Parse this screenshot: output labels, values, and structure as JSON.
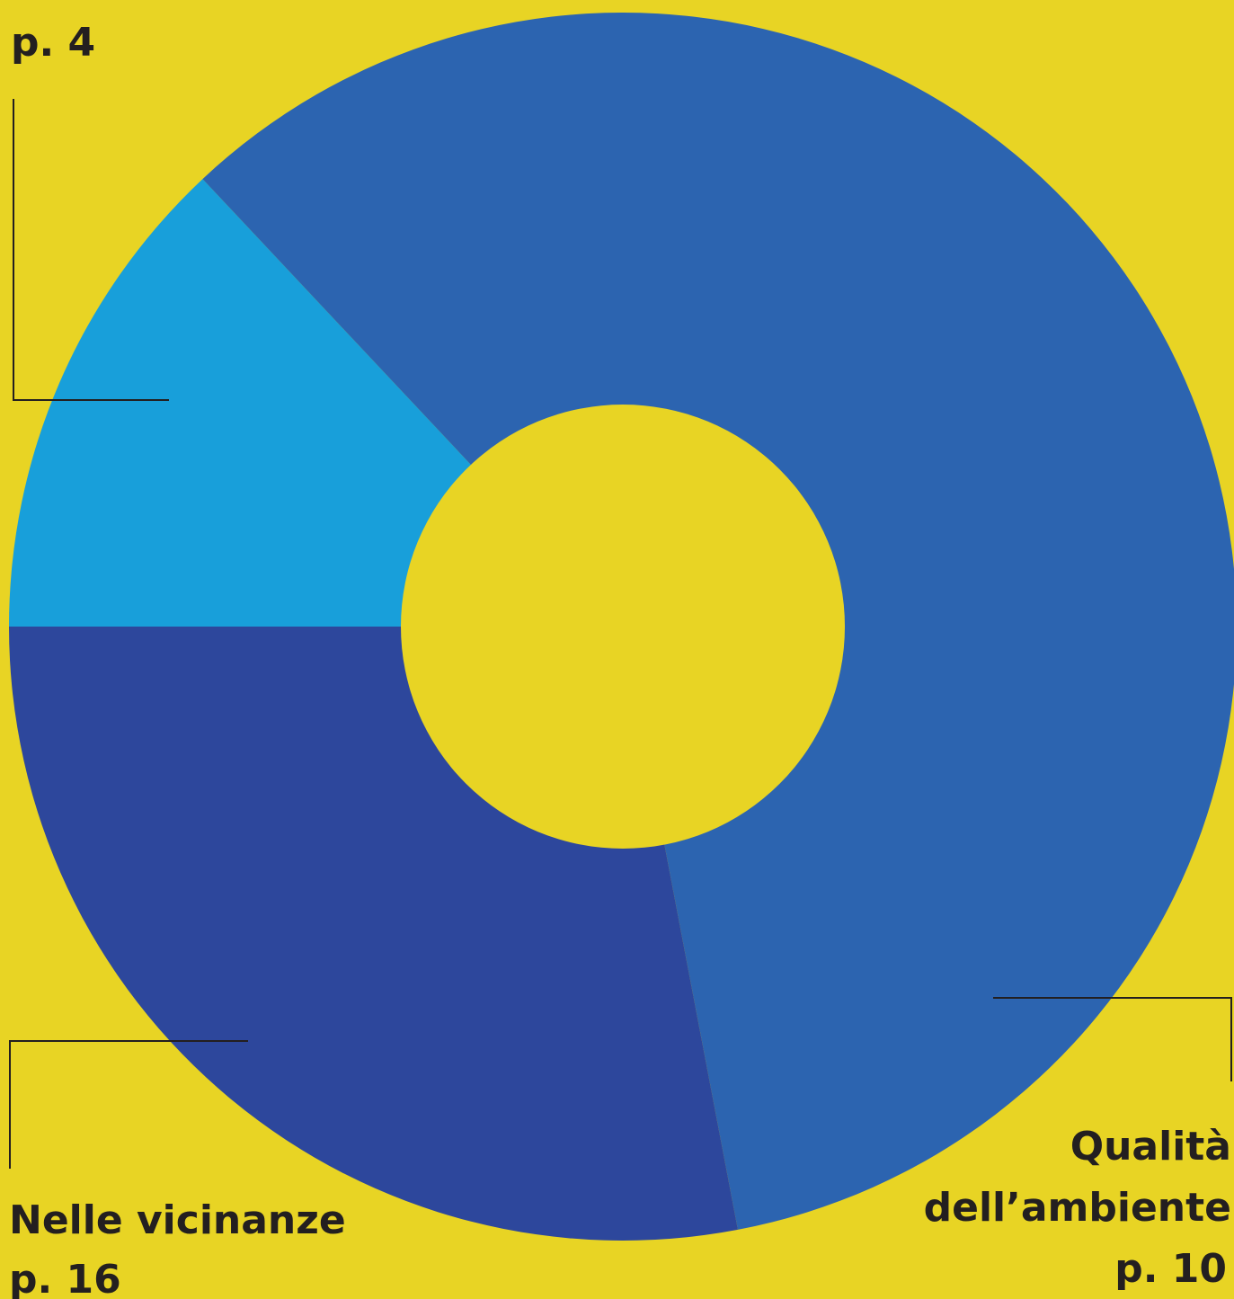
{
  "chart_data": {
    "type": "donut",
    "categories": [
      null,
      [
        "Qualità",
        "dell’ambiente"
      ],
      "Nelle vicinanze"
    ],
    "pages": [
      "p. 4",
      "p. 10",
      "p. 16"
    ],
    "values": [
      13,
      59,
      28
    ],
    "colors": [
      "#189fda",
      "#2c64b0",
      "#2d479c"
    ],
    "start_angle": 270,
    "direction": "clockwise"
  }
}
